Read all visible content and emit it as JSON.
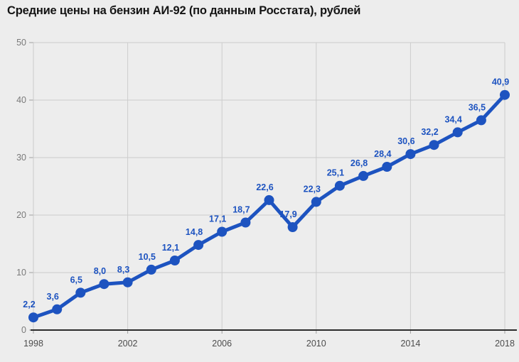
{
  "title": "Средние цены на бензин АИ-92 (по данным Росстата), рублей",
  "chart_data": {
    "type": "line",
    "title": "Средние цены на бензин АИ-92 (по данным Росстата), рублей",
    "xlabel": "",
    "ylabel": "",
    "x": [
      1998,
      1999,
      2000,
      2001,
      2002,
      2003,
      2004,
      2005,
      2006,
      2007,
      2008,
      2009,
      2010,
      2011,
      2012,
      2013,
      2014,
      2015,
      2016,
      2017,
      2018
    ],
    "values": [
      2.2,
      3.6,
      6.5,
      8.0,
      8.3,
      10.5,
      12.1,
      14.8,
      17.1,
      18.7,
      22.6,
      17.9,
      22.3,
      25.1,
      26.8,
      28.4,
      30.6,
      32.2,
      34.4,
      36.5,
      40.9
    ],
    "point_labels": [
      "2,2",
      "3,6",
      "6,5",
      "8,0",
      "8,3",
      "10,5",
      "12,1",
      "14,8",
      "17,1",
      "18,7",
      "22,6",
      "17,9",
      "22,3",
      "25,1",
      "26,8",
      "28,4",
      "30,6",
      "32,2",
      "34,4",
      "36,5",
      "40,9"
    ],
    "xticks": [
      1998,
      2002,
      2006,
      2010,
      2014,
      2018
    ],
    "yticks": [
      0,
      10,
      20,
      30,
      40,
      50
    ],
    "ylim": [
      0,
      50
    ],
    "grid": true,
    "legend": "none",
    "line_color": "#1d53c0",
    "marker_color": "#1d53c0",
    "label_color": "#1d53c0",
    "background_color": "#ededed",
    "gridline_color": "#cccccc",
    "axis_line_color": "#2b2b2b",
    "tick_color": "#9e9e9e",
    "y_tick_label_color": "#7a7a7a",
    "x_tick_label_color": "#4d4d4d"
  }
}
